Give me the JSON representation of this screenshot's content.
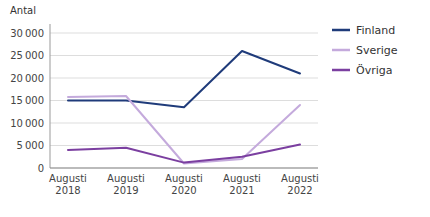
{
  "chart_data": {
    "type": "line",
    "y_label": "Antal",
    "categories": [
      "Augusti\n2018",
      "Augusti\n2019",
      "Augusti\n2020",
      "Augusti\n2021",
      "Augusti\n2022"
    ],
    "series": [
      {
        "name": "Finland",
        "color": "#1F3B7A",
        "values": [
          15000,
          15000,
          13500,
          26000,
          21000
        ]
      },
      {
        "name": "Sverige",
        "color": "#C4AADC",
        "values": [
          15800,
          16000,
          1000,
          2000,
          14000
        ]
      },
      {
        "name": "Övriga",
        "color": "#7B3FA0",
        "values": [
          4000,
          4500,
          1200,
          2500,
          5200
        ]
      }
    ],
    "ylim": [
      0,
      32000
    ],
    "yticks": [
      0,
      {
        "value": 5000,
        "label": "5 000"
      },
      {
        "value": 10000,
        "label": "10 000"
      },
      {
        "value": 15000,
        "label": "15 000"
      },
      {
        "value": 20000,
        "label": "20 000"
      },
      {
        "value": 25000,
        "label": "25 000"
      },
      {
        "value": 30000,
        "label": "30 000"
      }
    ],
    "grid": true,
    "legend": "right"
  }
}
